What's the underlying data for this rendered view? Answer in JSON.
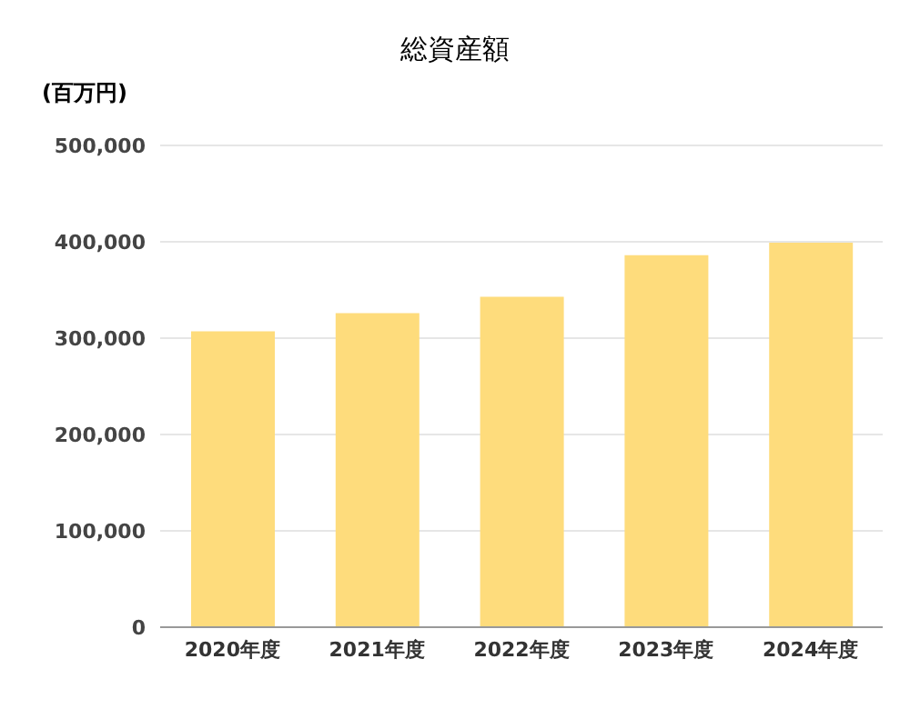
{
  "chart_data": {
    "type": "bar",
    "title": "総資産額",
    "ylabel": "(百万円)",
    "categories": [
      "2020年度",
      "2021年度",
      "2022年度",
      "2023年度",
      "2024年度"
    ],
    "values": [
      307000,
      326000,
      343000,
      386000,
      399000
    ],
    "color": "#fedc7c",
    "ylim": [
      0,
      500000
    ],
    "yticks": [
      {
        "value": 0,
        "label": "0"
      },
      {
        "value": 100000,
        "label": "100,000"
      },
      {
        "value": 200000,
        "label": "200,000"
      },
      {
        "value": 300000,
        "label": "300,000"
      },
      {
        "value": 400000,
        "label": "400,000"
      },
      {
        "value": 500000,
        "label": "500,000"
      }
    ],
    "grid": "y"
  }
}
